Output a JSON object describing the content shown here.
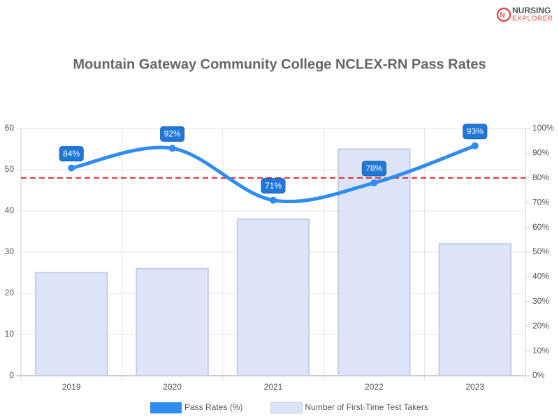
{
  "logo": {
    "line1": "NURSING",
    "line2": "EXPLORER"
  },
  "chart_data": {
    "type": "combo",
    "title": "Mountain Gateway Community College NCLEX-RN Pass Rates",
    "categories": [
      "2019",
      "2020",
      "2021",
      "2022",
      "2023"
    ],
    "series": [
      {
        "name": "Pass Rates (%)",
        "type": "line",
        "axis": "y2",
        "color": "#2f8cf0",
        "values": [
          84,
          92,
          71,
          78,
          93
        ],
        "value_labels": [
          "84%",
          "92%",
          "71%",
          "78%",
          "93%"
        ]
      },
      {
        "name": "Number of First-Time Test Takers",
        "type": "bar",
        "color": "#dde4f7",
        "values": [
          25,
          26,
          38,
          55,
          32
        ]
      }
    ],
    "ylim": [
      0,
      60
    ],
    "yticks": [
      0,
      10,
      20,
      30,
      40,
      50,
      60
    ],
    "y2lim": [
      0,
      100
    ],
    "y2ticks": [
      {
        "value": 0,
        "label": "0%"
      },
      {
        "value": 10,
        "label": "10%"
      },
      {
        "value": 20,
        "label": "20%"
      },
      {
        "value": 30,
        "label": "30%"
      },
      {
        "value": 40,
        "label": "40%"
      },
      {
        "value": 50,
        "label": "50%"
      },
      {
        "value": 60,
        "label": "60%"
      },
      {
        "value": 70,
        "label": "70%"
      },
      {
        "value": 80,
        "label": "80%"
      },
      {
        "value": 90,
        "label": "90%"
      },
      {
        "value": 100,
        "label": "100%"
      }
    ],
    "reference_line": {
      "value": 80,
      "axis": "y2",
      "color": "#d62728"
    },
    "grid": true,
    "legend": "bottom"
  }
}
